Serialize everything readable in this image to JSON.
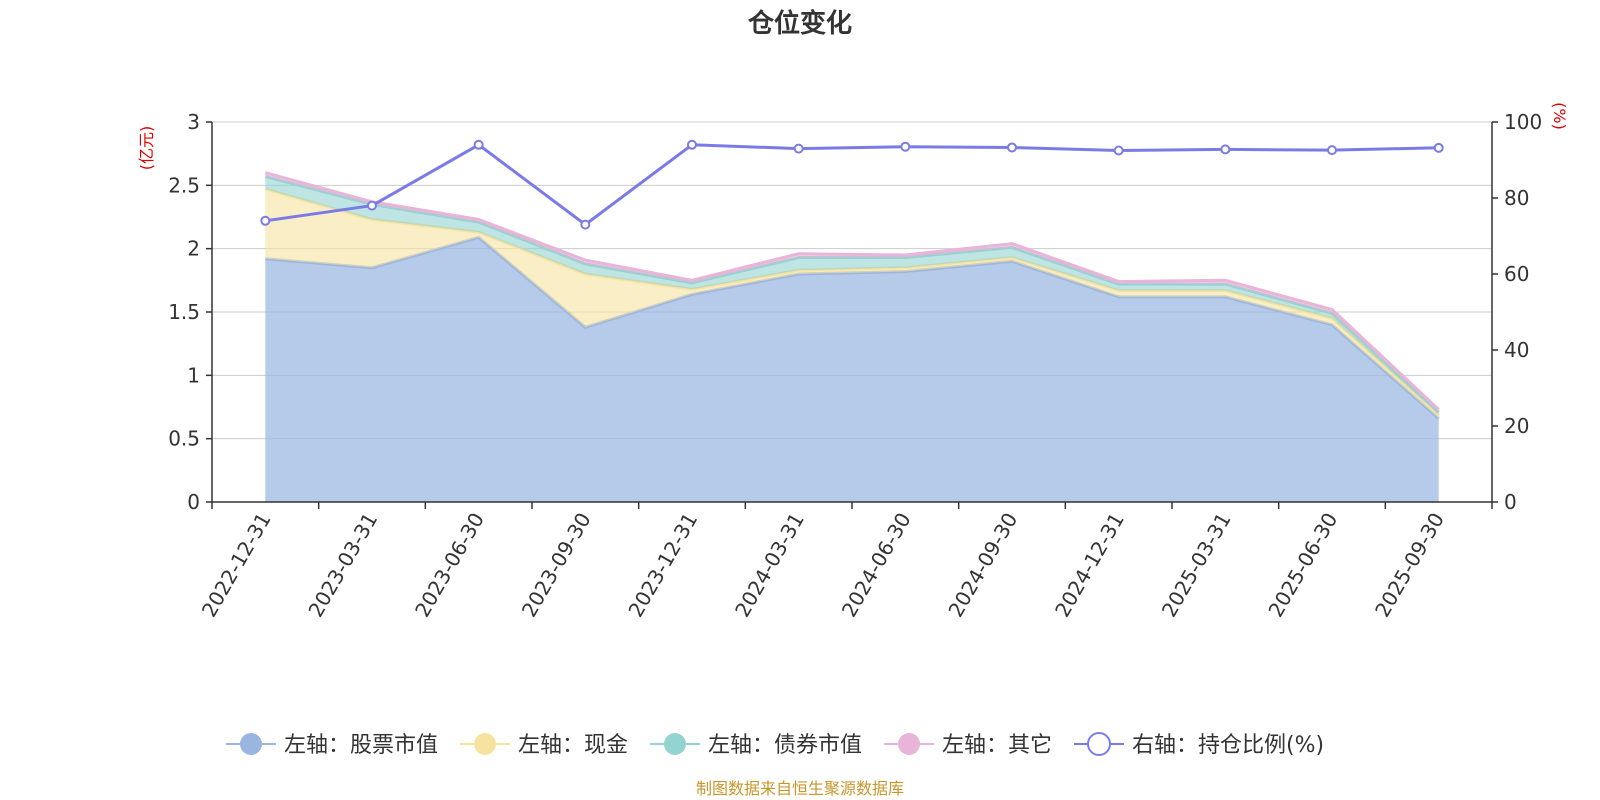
{
  "chart_data": {
    "type": "area",
    "title": "仓位变化",
    "categories": [
      "2022-12-31",
      "2023-03-31",
      "2023-06-30",
      "2023-09-30",
      "2023-12-31",
      "2024-03-31",
      "2024-06-30",
      "2024-09-30",
      "2024-12-31",
      "2025-03-31",
      "2025-06-30",
      "2025-09-30"
    ],
    "left_axis": {
      "unit": "(亿元)",
      "ylim": [
        0,
        3
      ],
      "ticks": [
        0,
        0.5,
        1,
        1.5,
        2,
        2.5,
        3
      ],
      "tick_labels": [
        "0",
        "0.5",
        "1",
        "1.5",
        "2",
        "2.5",
        "3"
      ]
    },
    "right_axis": {
      "unit": "(%)",
      "ylim": [
        0,
        100
      ],
      "ticks": [
        0,
        20,
        40,
        60,
        80,
        100
      ],
      "tick_labels": [
        "0",
        "20",
        "40",
        "60",
        "80",
        "100"
      ]
    },
    "stacked_series": [
      {
        "name": "左轴：股票市值",
        "color": "#9ab5e0",
        "values": [
          1.92,
          1.85,
          2.09,
          1.38,
          1.64,
          1.8,
          1.82,
          1.9,
          1.62,
          1.62,
          1.4,
          0.66
        ]
      },
      {
        "name": "左轴：现金",
        "color": "#f7e3a0",
        "values": [
          0.55,
          0.38,
          0.04,
          0.42,
          0.04,
          0.03,
          0.03,
          0.03,
          0.05,
          0.05,
          0.05,
          0.03
        ]
      },
      {
        "name": "左轴：债券市值",
        "color": "#93d3d0",
        "values": [
          0.1,
          0.12,
          0.08,
          0.08,
          0.05,
          0.1,
          0.08,
          0.08,
          0.05,
          0.05,
          0.04,
          0.02
        ]
      },
      {
        "name": "左轴：其它",
        "color": "#e8b4d8",
        "values": [
          0.03,
          0.02,
          0.02,
          0.03,
          0.02,
          0.03,
          0.02,
          0.03,
          0.02,
          0.03,
          0.03,
          0.02
        ]
      }
    ],
    "line_series": {
      "name": "右轴：持仓比例(%)",
      "color": "#7b7be8",
      "values": [
        74,
        78,
        94,
        73,
        94,
        93,
        93.5,
        93.3,
        92.5,
        92.8,
        92.6,
        93.2
      ]
    },
    "legend_position": "bottom",
    "grid": true
  },
  "source": "制图数据来自恒生聚源数据库"
}
